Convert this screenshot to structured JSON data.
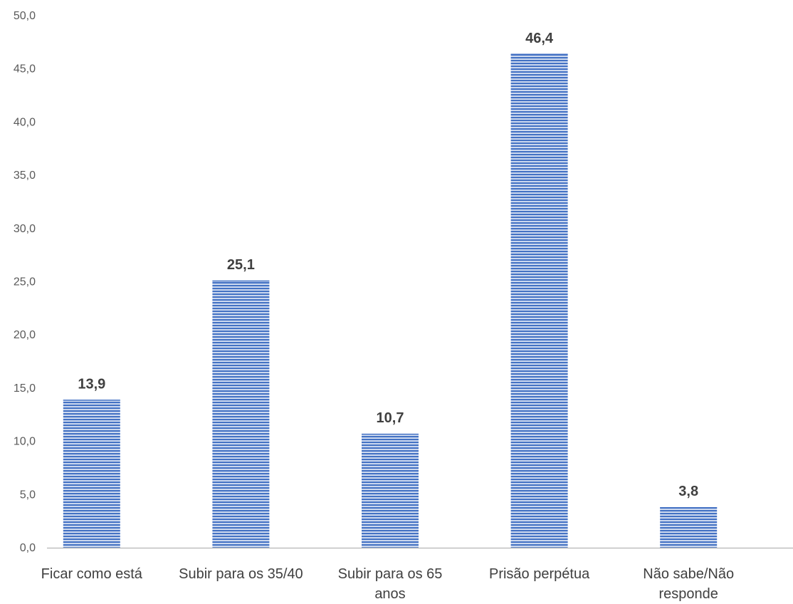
{
  "chart_data": {
    "type": "bar",
    "categories": [
      [
        "Ficar como está"
      ],
      [
        "Subir para os 35/40"
      ],
      [
        "Subir para os 65",
        "anos"
      ],
      [
        "Prisão perpétua"
      ],
      [
        "Não sabe/Não",
        "responde"
      ]
    ],
    "values": [
      13.9,
      25.1,
      10.7,
      46.4,
      3.8
    ],
    "data_labels": [
      "13,9",
      "25,1",
      "10,7",
      "46,4",
      "3,8"
    ],
    "y_ticks": [
      "0,0",
      "5,0",
      "10,0",
      "15,0",
      "20,0",
      "25,0",
      "30,0",
      "35,0",
      "40,0",
      "45,0",
      "50,0"
    ],
    "ylim": [
      0,
      50
    ],
    "title": "",
    "xlabel": "",
    "ylabel": "",
    "grid": false,
    "legend": "none",
    "bar_color": "#4472c4",
    "bar_pattern": "horizontal-stripes",
    "axis_color": "#bfbfbf"
  }
}
